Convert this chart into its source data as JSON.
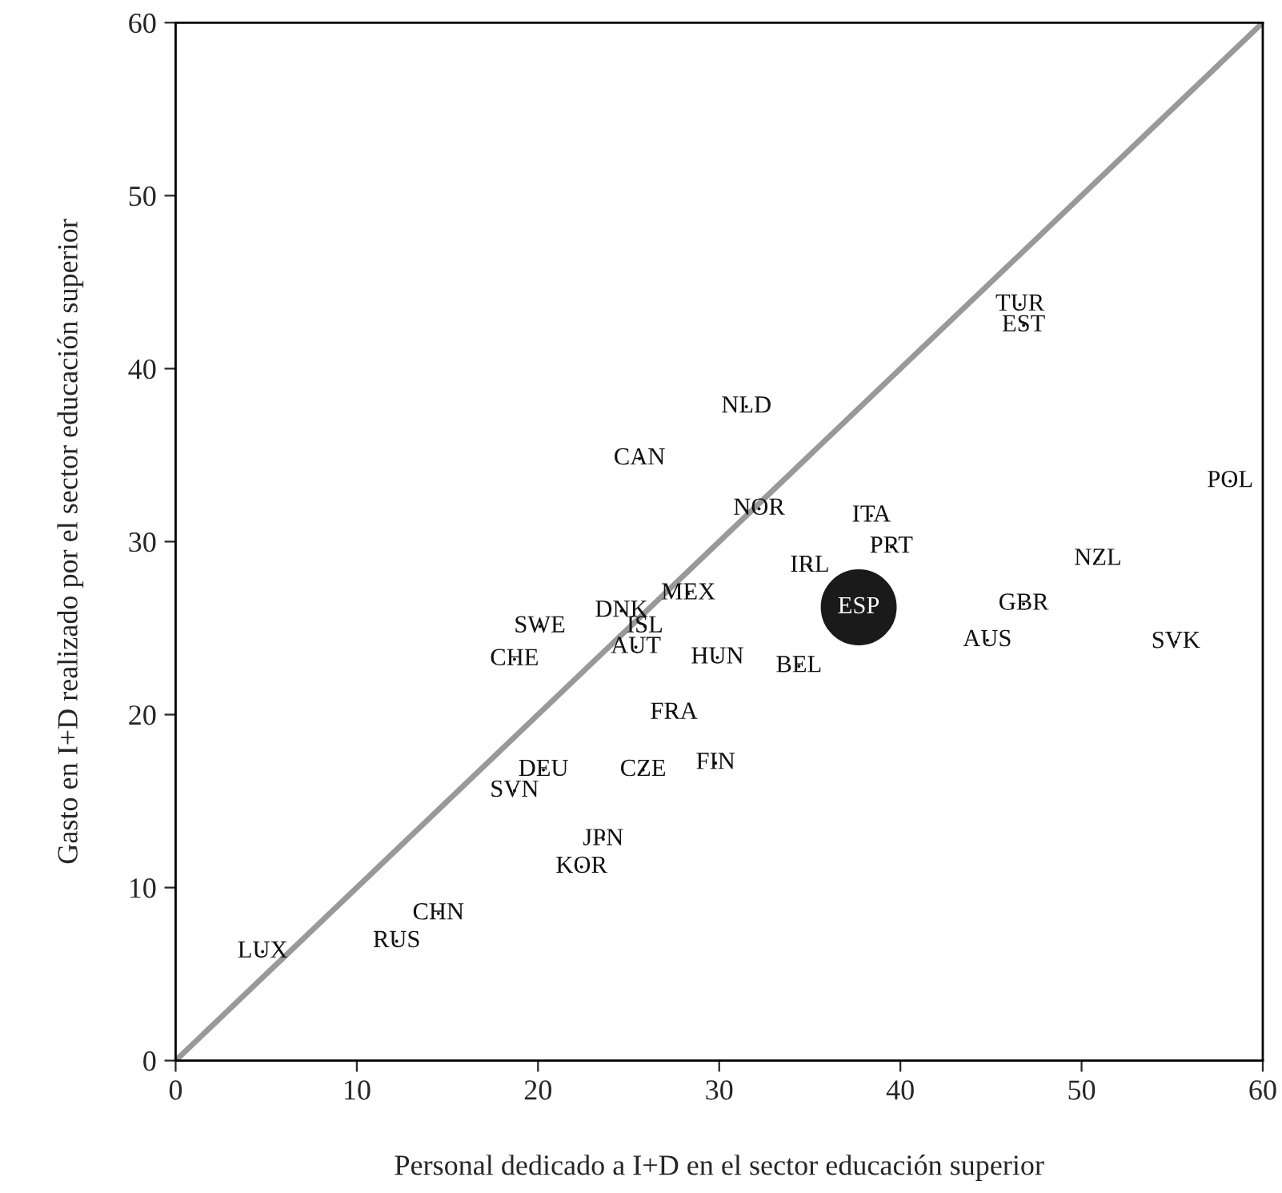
{
  "chart_data": {
    "type": "scatter",
    "xlabel": "Personal dedicado a I+D en el sector educación superior",
    "ylabel": "Gasto en I+D realizado por el sector educación superior",
    "xlim": [
      0,
      60
    ],
    "ylim": [
      0,
      60
    ],
    "xticks": [
      0,
      10,
      20,
      30,
      40,
      50,
      60
    ],
    "yticks": [
      0,
      10,
      20,
      30,
      40,
      50,
      60
    ],
    "grid": false,
    "legend": false,
    "series": [
      {
        "type": "line",
        "color": "#999999",
        "x": [
          0,
          60
        ],
        "values": [
          0,
          60
        ],
        "marker": "none"
      },
      {
        "type": "scatter",
        "color": "#111111",
        "marker": "none",
        "x": [
          46.6,
          46.8,
          31.5,
          25.6,
          58.2,
          32.2,
          38.4,
          39.5,
          50.9,
          35.0,
          28.3,
          24.6,
          46.8,
          25.9,
          20.1,
          44.8,
          55.2,
          25.4,
          18.7,
          29.9,
          34.4,
          27.5,
          29.8,
          20.3,
          25.8,
          18.7,
          23.6,
          22.4,
          14.5,
          12.2,
          4.8
        ],
        "values": [
          43.7,
          42.5,
          37.8,
          34.8,
          33.5,
          31.9,
          31.5,
          29.7,
          29.0,
          28.6,
          27.0,
          26.0,
          26.4,
          25.1,
          25.1,
          24.3,
          24.2,
          23.9,
          23.2,
          23.3,
          22.8,
          20.1,
          17.2,
          16.8,
          16.8,
          15.6,
          12.8,
          11.2,
          8.5,
          6.9,
          6.3
        ],
        "value_labels": [
          "TUR",
          "EST",
          "NLD",
          "CAN",
          "POL",
          "NOR",
          "ITA",
          "PRT",
          "NZL",
          "IRL",
          "MEX",
          "DNK",
          "GBR",
          "ISL",
          "SWE",
          "AUS",
          "SVK",
          "AUT",
          "CHE",
          "HUN",
          "BEL",
          "FRA",
          "FIN",
          "DEU",
          "CZE",
          "SVN",
          "JPN",
          "KOR",
          "CHN",
          "RUS",
          "LUX"
        ]
      },
      {
        "color": "#1a1a1a",
        "marker": "circle",
        "x": [
          37.7
        ],
        "values": [
          26.2
        ],
        "value_labels": [
          "ESP"
        ]
      }
    ]
  }
}
